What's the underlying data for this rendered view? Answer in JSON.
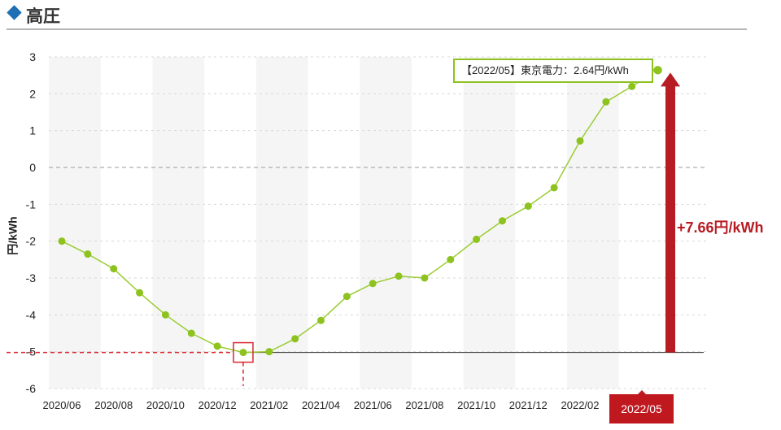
{
  "header": {
    "title": "高圧"
  },
  "chart_data": {
    "type": "line",
    "ylabel": "円/kWh",
    "ylim": [
      -6,
      3
    ],
    "y_ticks": [
      "3",
      "2",
      "1",
      "0",
      "-1",
      "-2",
      "-3",
      "-4",
      "-5",
      "-6"
    ],
    "x_tick_labels": [
      "2020/06",
      "2020/08",
      "2020/10",
      "2020/12",
      "2021/02",
      "2021/04",
      "2021/06",
      "2021/08",
      "2021/10",
      "2021/12",
      "2022/02",
      "2022/05"
    ],
    "x": [
      "2020/06",
      "2020/07",
      "2020/08",
      "2020/09",
      "2020/10",
      "2020/11",
      "2020/12",
      "2021/01",
      "2021/02",
      "2021/03",
      "2021/04",
      "2021/05",
      "2021/06",
      "2021/07",
      "2021/08",
      "2021/09",
      "2021/10",
      "2021/11",
      "2021/12",
      "2022/01",
      "2022/02",
      "2022/03",
      "2022/04",
      "2022/05"
    ],
    "series": [
      {
        "values": [
          -2.0,
          -2.35,
          -2.75,
          -3.4,
          -4.0,
          -4.5,
          -4.85,
          -5.02,
          -5.0,
          -4.65,
          -4.15,
          -3.5,
          -3.15,
          -2.95,
          -3.0,
          -2.5,
          -1.95,
          -1.45,
          -1.05,
          -0.55,
          0.72,
          1.78,
          2.2,
          2.64
        ]
      }
    ],
    "grid": true,
    "tooltip": "【2022/05】東京電力：2.64円/kWh",
    "annotation": "+7.66円/kWh",
    "highlight_label": "2022/05",
    "colors": {
      "line": "#9acd32",
      "marker": "#8dc21f",
      "accent": "#b71c24",
      "band": "#f5f5f5"
    }
  }
}
